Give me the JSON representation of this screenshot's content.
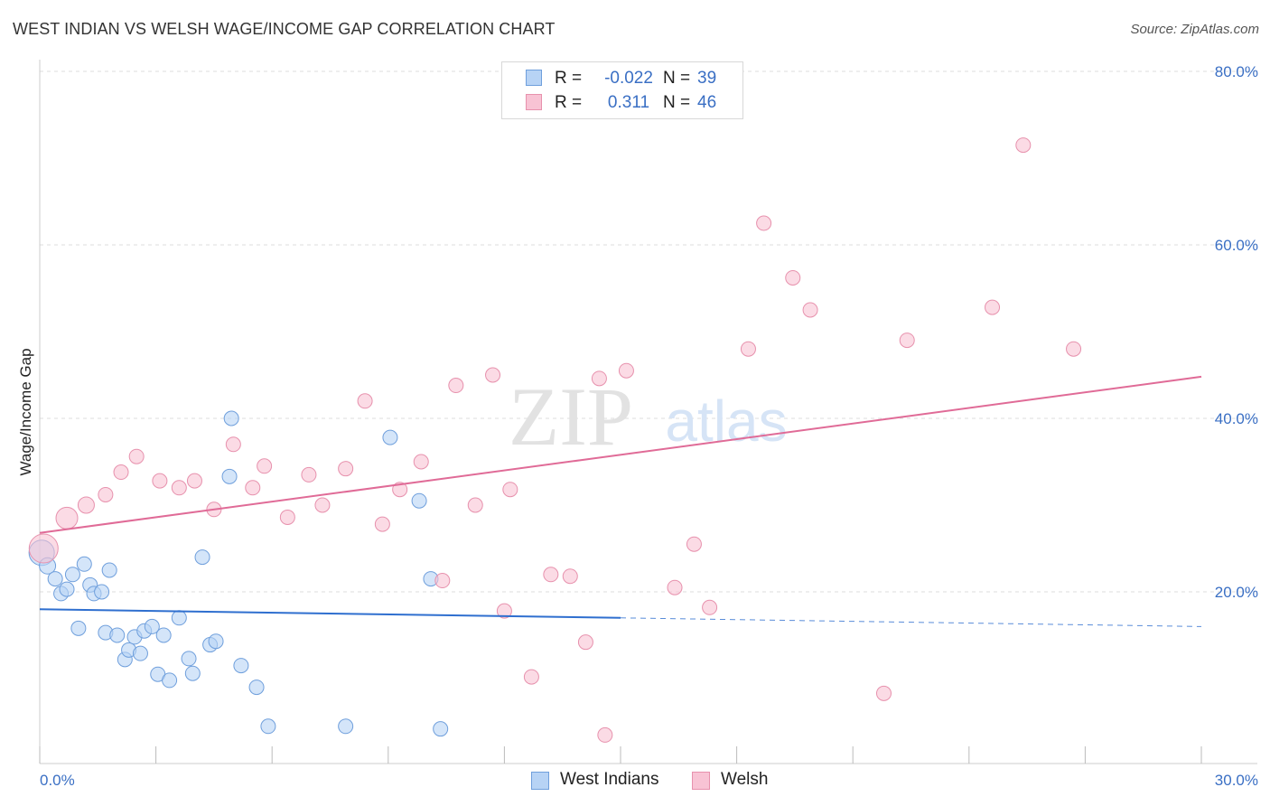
{
  "header": {
    "title": "WEST INDIAN VS WELSH WAGE/INCOME GAP CORRELATION CHART",
    "source": "Source: ZipAtlas.com"
  },
  "watermark": {
    "zip": "ZIP",
    "atlas": "atlas"
  },
  "legend": {
    "r_label": "R =",
    "n_label": "N =",
    "west_indians": {
      "r": "-0.022",
      "n": "39"
    },
    "welsh": {
      "r": "0.311",
      "n": "46"
    }
  },
  "bottom_legend": {
    "west_indians": "West Indians",
    "welsh": "Welsh"
  },
  "colors": {
    "west_indians_fill": "#b7d3f5",
    "west_indians_stroke": "#6f9fdc",
    "west_indians_line": "#2f6fcf",
    "welsh_fill": "#f8c3d4",
    "welsh_stroke": "#e791ad",
    "welsh_line": "#e06b97",
    "tick_label": "#3a6fc4",
    "grid": "#dddddd"
  },
  "chart_data": {
    "type": "scatter",
    "title": "WEST INDIAN VS WELSH WAGE/INCOME GAP CORRELATION CHART",
    "xlabel": "",
    "ylabel": "Wage/Income Gap",
    "xlim": [
      0,
      30
    ],
    "ylim": [
      0,
      82
    ],
    "x_tick_labels": [
      {
        "value": 0,
        "label": "0.0%"
      },
      {
        "value": 30,
        "label": "30.0%"
      }
    ],
    "y_tick_labels": [
      {
        "value": 20,
        "label": "20.0%"
      },
      {
        "value": 40,
        "label": "40.0%"
      },
      {
        "value": 60,
        "label": "60.0%"
      },
      {
        "value": 80,
        "label": "80.0%"
      }
    ],
    "grid": "horizontal dashed",
    "legend_position": "top-center",
    "series": [
      {
        "name": "West Indians",
        "r": -0.022,
        "n": 39,
        "trend": {
          "x0": 0,
          "y0": 18.0,
          "x1": 15,
          "y1": 17.0,
          "dashed_x1": 30,
          "dashed_y1": 16.0
        },
        "points": [
          [
            0.05,
            24.5,
            14
          ],
          [
            0.2,
            23.0,
            9
          ],
          [
            0.4,
            21.5,
            8
          ],
          [
            0.55,
            19.8,
            8
          ],
          [
            0.7,
            20.3,
            8
          ],
          [
            0.85,
            22.0,
            8
          ],
          [
            1.0,
            15.8,
            8
          ],
          [
            1.15,
            23.2,
            8
          ],
          [
            1.3,
            20.8,
            8
          ],
          [
            1.4,
            19.8,
            8
          ],
          [
            1.6,
            20.0,
            8
          ],
          [
            1.7,
            15.3,
            8
          ],
          [
            1.8,
            22.5,
            8
          ],
          [
            2.0,
            15.0,
            8
          ],
          [
            2.2,
            12.2,
            8
          ],
          [
            2.3,
            13.3,
            8
          ],
          [
            2.45,
            14.8,
            8
          ],
          [
            2.6,
            12.9,
            8
          ],
          [
            2.7,
            15.5,
            8
          ],
          [
            2.9,
            16.0,
            8
          ],
          [
            3.05,
            10.5,
            8
          ],
          [
            3.2,
            15.0,
            8
          ],
          [
            3.35,
            9.8,
            8
          ],
          [
            3.6,
            17.0,
            8
          ],
          [
            3.85,
            12.3,
            8
          ],
          [
            3.95,
            10.6,
            8
          ],
          [
            4.2,
            24.0,
            8
          ],
          [
            4.4,
            13.9,
            8
          ],
          [
            4.55,
            14.3,
            8
          ],
          [
            4.9,
            33.3,
            8
          ],
          [
            4.95,
            40.0,
            8
          ],
          [
            5.2,
            11.5,
            8
          ],
          [
            5.6,
            9.0,
            8
          ],
          [
            5.9,
            4.5,
            8
          ],
          [
            7.9,
            4.5,
            8
          ],
          [
            9.05,
            37.8,
            8
          ],
          [
            9.8,
            30.5,
            8
          ],
          [
            10.1,
            21.5,
            8
          ],
          [
            10.35,
            4.2,
            8
          ]
        ]
      },
      {
        "name": "Welsh",
        "r": 0.311,
        "n": 46,
        "trend": {
          "x0": 0,
          "y0": 26.8,
          "x1": 30,
          "y1": 44.8
        },
        "points": [
          [
            0.1,
            25.0,
            16
          ],
          [
            0.7,
            28.5,
            12
          ],
          [
            1.2,
            30.0,
            9
          ],
          [
            1.7,
            31.2,
            8
          ],
          [
            2.1,
            33.8,
            8
          ],
          [
            2.5,
            35.6,
            8
          ],
          [
            3.1,
            32.8,
            8
          ],
          [
            3.6,
            32.0,
            8
          ],
          [
            4.0,
            32.8,
            8
          ],
          [
            4.5,
            29.5,
            8
          ],
          [
            5.0,
            37.0,
            8
          ],
          [
            5.5,
            32.0,
            8
          ],
          [
            5.8,
            34.5,
            8
          ],
          [
            6.4,
            28.6,
            8
          ],
          [
            6.95,
            33.5,
            8
          ],
          [
            7.3,
            30.0,
            8
          ],
          [
            7.9,
            34.2,
            8
          ],
          [
            8.4,
            42.0,
            8
          ],
          [
            8.85,
            27.8,
            8
          ],
          [
            9.3,
            31.8,
            8
          ],
          [
            9.85,
            35.0,
            8
          ],
          [
            10.4,
            21.3,
            8
          ],
          [
            10.75,
            43.8,
            8
          ],
          [
            11.25,
            30.0,
            8
          ],
          [
            11.7,
            45.0,
            8
          ],
          [
            12.0,
            17.8,
            8
          ],
          [
            12.15,
            31.8,
            8
          ],
          [
            12.7,
            10.2,
            8
          ],
          [
            13.2,
            22.0,
            8
          ],
          [
            13.7,
            21.8,
            8
          ],
          [
            14.1,
            14.2,
            8
          ],
          [
            14.45,
            44.6,
            8
          ],
          [
            14.6,
            3.5,
            8
          ],
          [
            15.15,
            45.5,
            8
          ],
          [
            16.4,
            20.5,
            8
          ],
          [
            16.9,
            25.5,
            8
          ],
          [
            17.3,
            18.2,
            8
          ],
          [
            18.3,
            48.0,
            8
          ],
          [
            18.7,
            62.5,
            8
          ],
          [
            19.45,
            56.2,
            8
          ],
          [
            19.9,
            52.5,
            8
          ],
          [
            21.8,
            8.3,
            8
          ],
          [
            22.4,
            49.0,
            8
          ],
          [
            24.6,
            52.8,
            8
          ],
          [
            25.4,
            71.5,
            8
          ],
          [
            26.7,
            48.0,
            8
          ]
        ]
      }
    ]
  }
}
